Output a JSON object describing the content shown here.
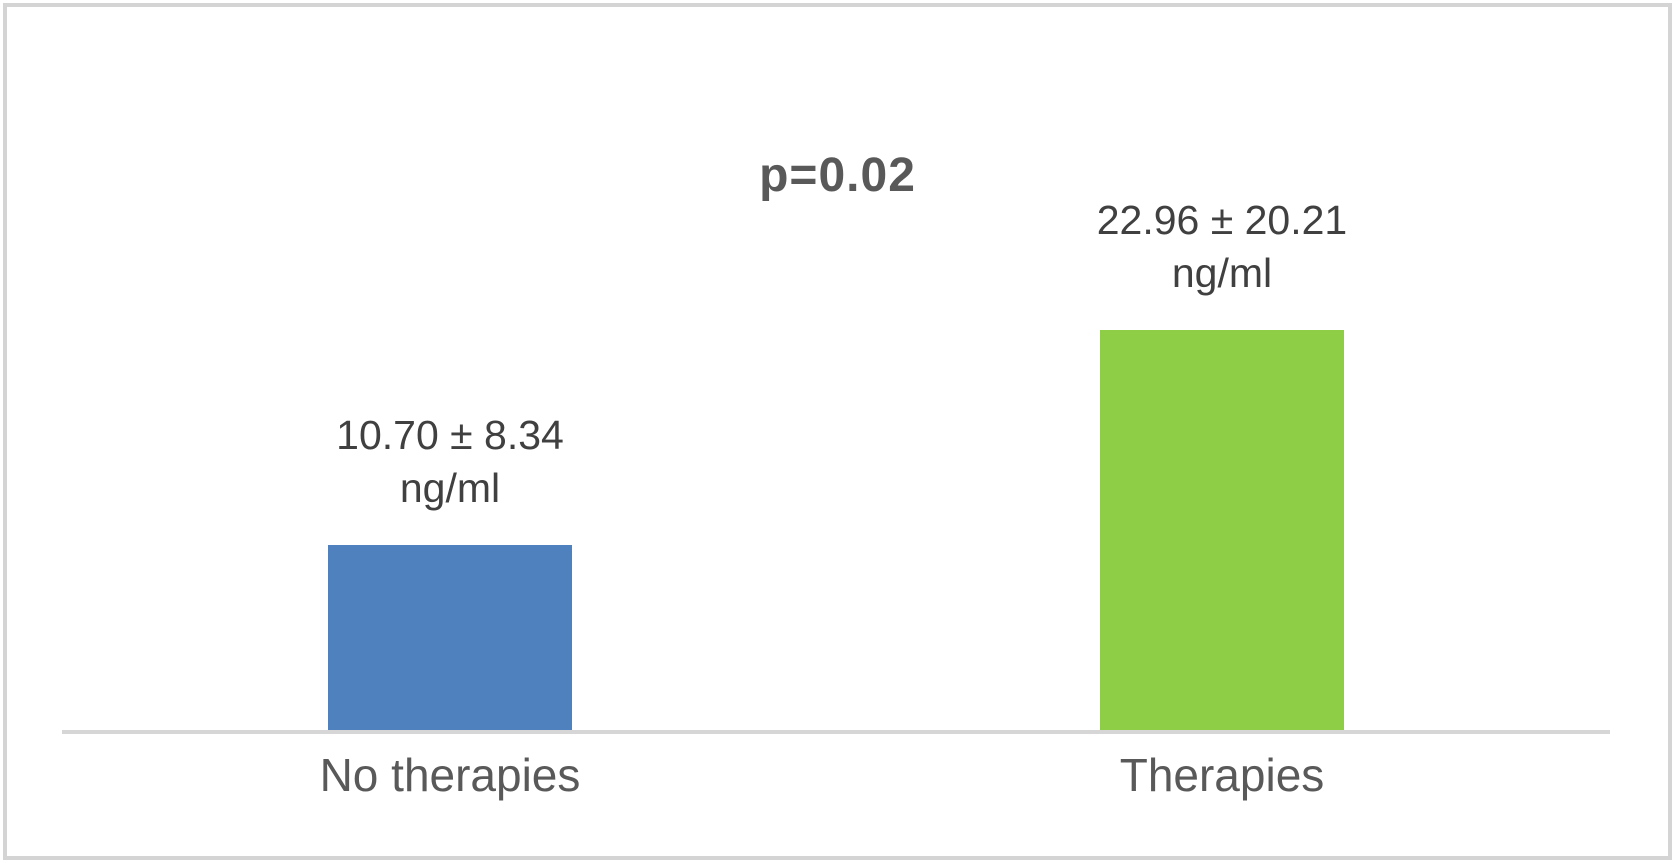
{
  "chart_data": {
    "type": "bar",
    "title": "",
    "xlabel": "",
    "ylabel": "",
    "categories": [
      "No therapies",
      "Therapies"
    ],
    "values": [
      10.7,
      22.96
    ],
    "errors": [
      8.34,
      20.21
    ],
    "value_labels": [
      "10.70 ± 8.34",
      "22.96 ± 20.21"
    ],
    "unit": "ng/ml",
    "annotation": "p=0.02",
    "bar_colors": [
      "#4E81BD",
      "#8DCE46"
    ],
    "ylim": [
      0,
      25.7
    ],
    "grid": false,
    "legend": false,
    "baseline_visible": true
  },
  "colors": {
    "value_text": "#404040",
    "category_text": "#595959",
    "annotation_text": "#595959",
    "axis_line": "#d6d6d6",
    "frame_border": "#d4d4d4",
    "background": "#ffffff"
  }
}
